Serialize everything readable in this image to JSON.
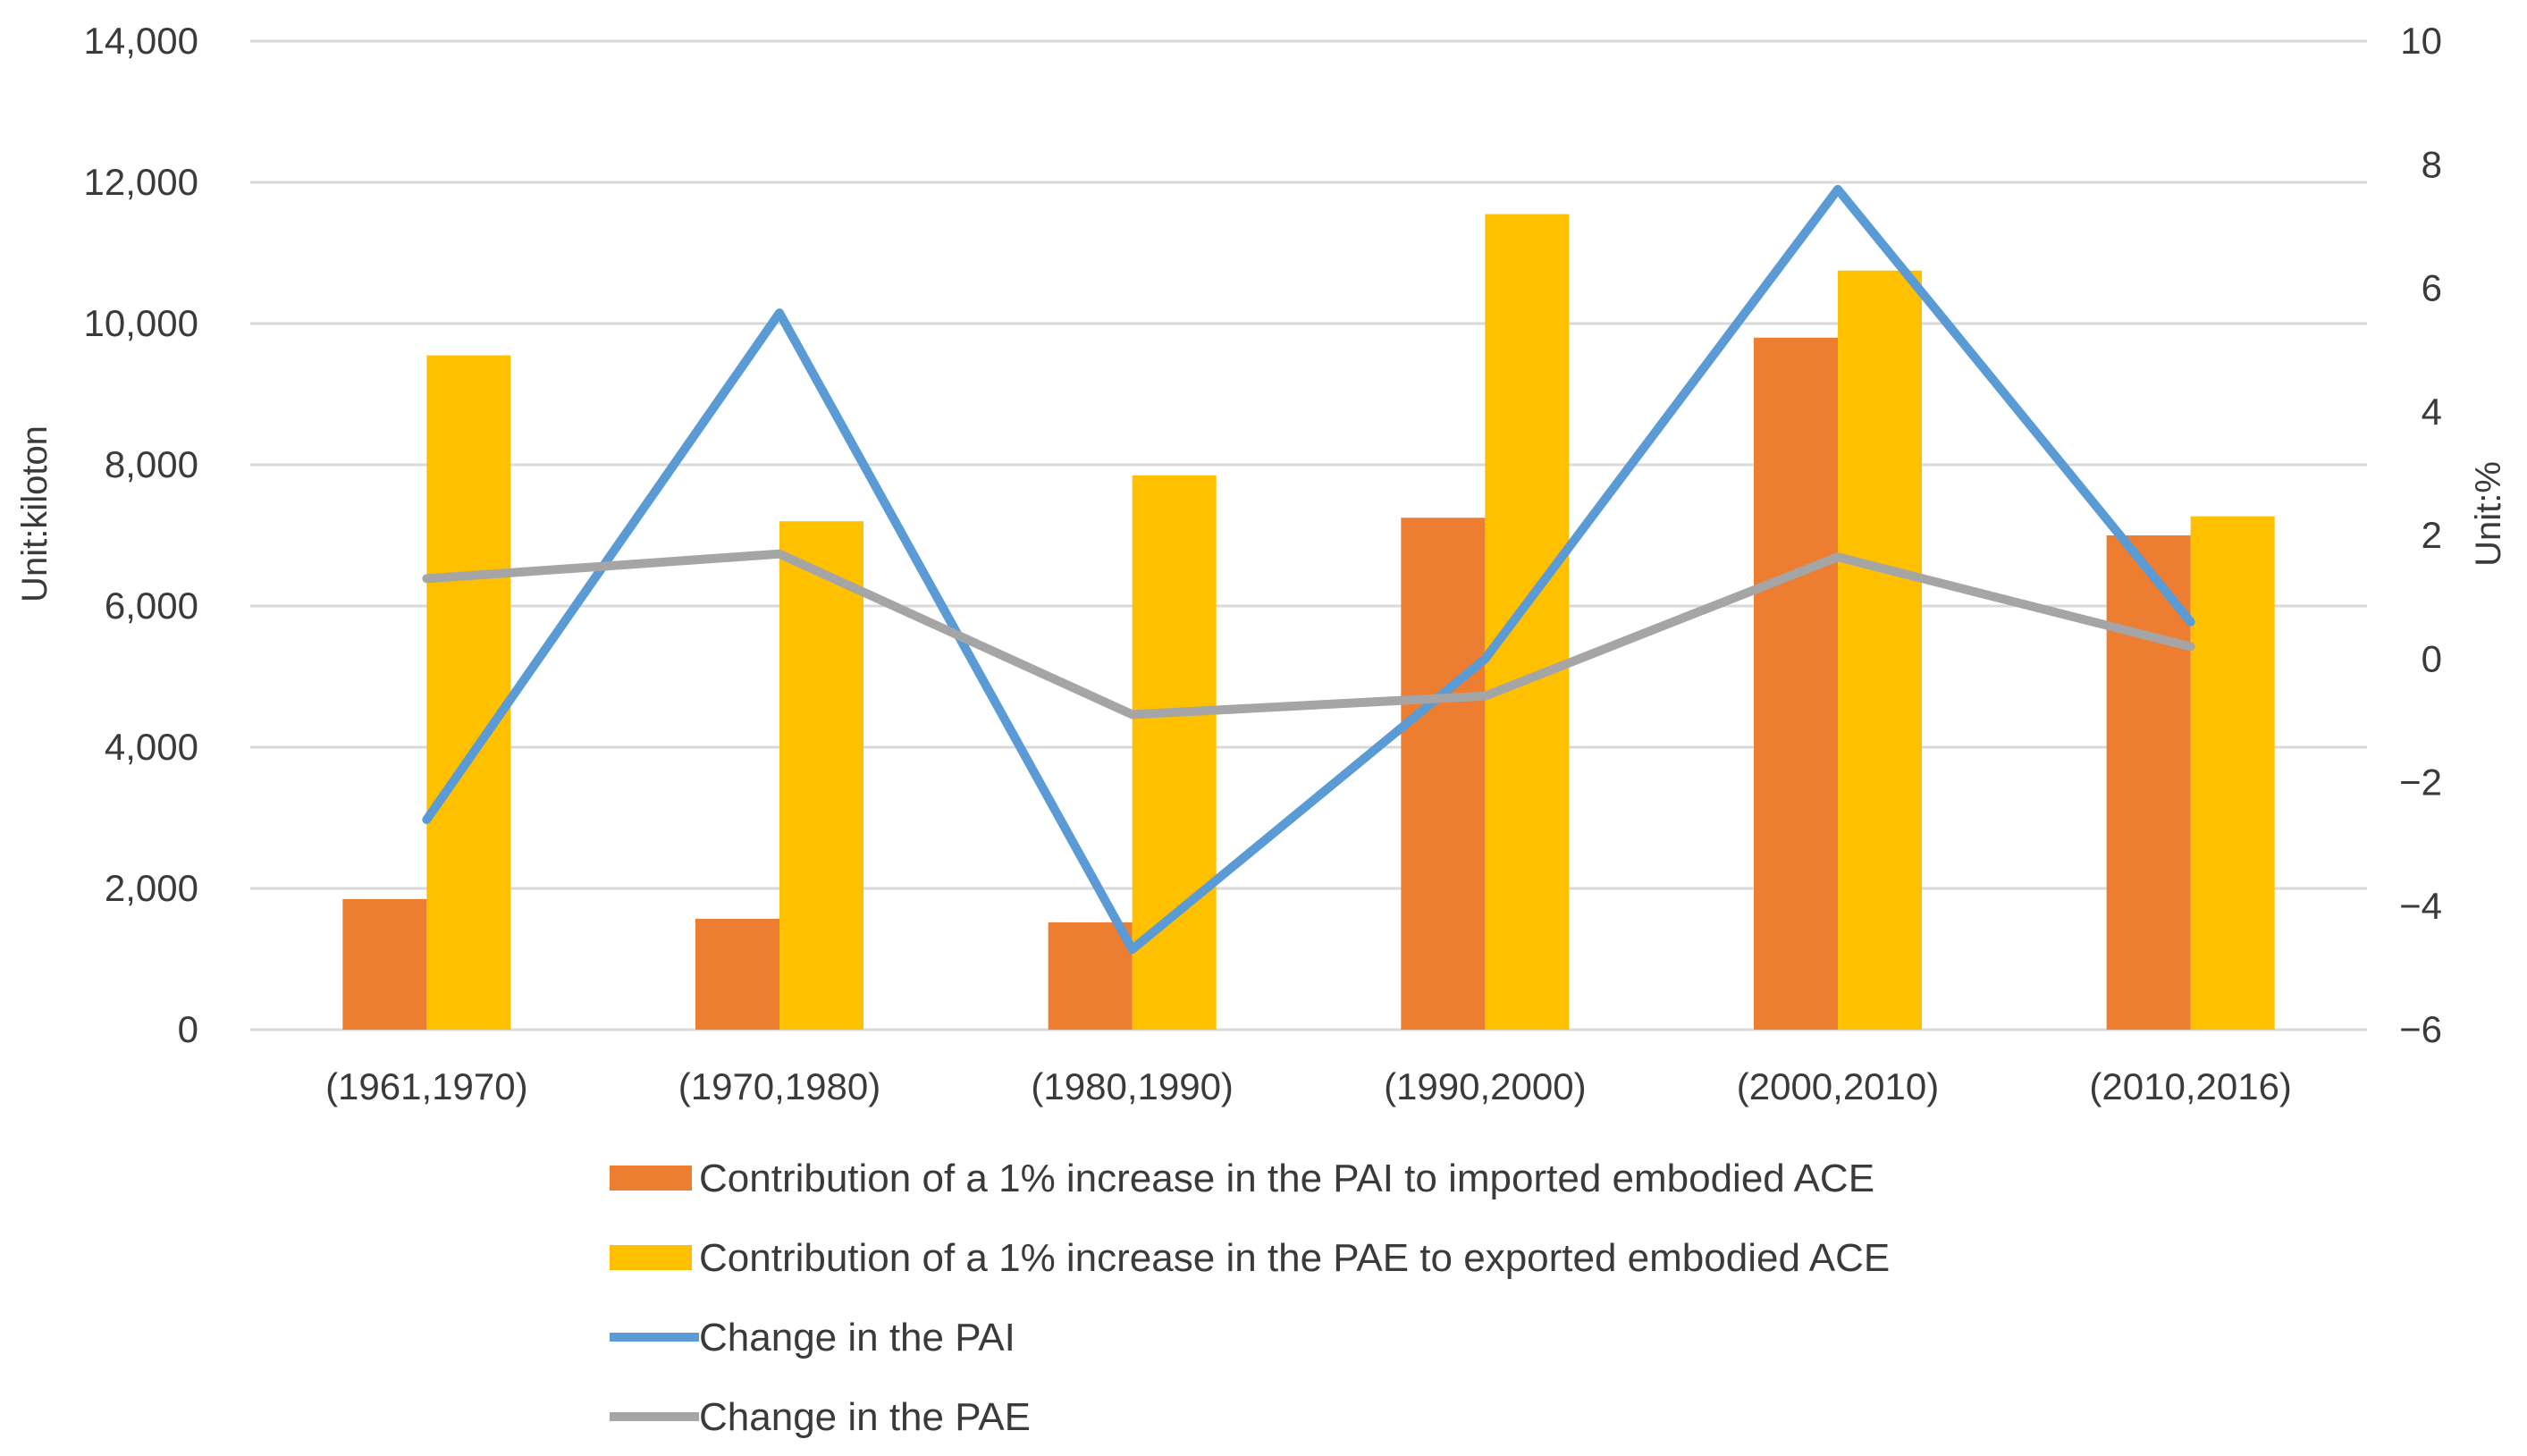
{
  "chart_data": {
    "type": "bar",
    "categories": [
      "(1961,1970)",
      "(1970,1980)",
      "(1980,1990)",
      "(1990,2000)",
      "(2000,2010)",
      "(2010,2016)"
    ],
    "series": [
      {
        "name": "Contribution of a 1% increase in the PAI to imported embodied ACE",
        "kind": "bar",
        "axis": "left",
        "color": "#ED7D31",
        "values": [
          1850,
          1570,
          1520,
          7250,
          9800,
          7000
        ]
      },
      {
        "name": "Contribution of a 1% increase in the PAE to exported embodied ACE",
        "kind": "bar",
        "axis": "left",
        "color": "#FFC000",
        "values": [
          9550,
          7200,
          7850,
          11550,
          10750,
          7270
        ]
      },
      {
        "name": "Change in the PAI",
        "kind": "line",
        "axis": "right",
        "color": "#5B9BD5",
        "values": [
          -2.6,
          5.6,
          -4.7,
          0.0,
          7.6,
          0.6
        ]
      },
      {
        "name": "Change in the PAE",
        "kind": "line",
        "axis": "right",
        "color": "#A5A5A5",
        "values": [
          1.3,
          1.7,
          -0.9,
          -0.6,
          1.65,
          0.2
        ]
      }
    ],
    "ylabel": "Unit:kiloton",
    "y2label": "Unit:%",
    "ylim": [
      0,
      14000
    ],
    "y2lim": [
      -6,
      10
    ],
    "yticks": [
      "0",
      "2,000",
      "4,000",
      "6,000",
      "8,000",
      "10,000",
      "12,000",
      "14,000"
    ],
    "y2ticks": [
      "−6",
      "−4",
      "−2",
      "0",
      "2",
      "4",
      "6",
      "8",
      "10"
    ],
    "grid": true,
    "legend_position": "bottom"
  }
}
